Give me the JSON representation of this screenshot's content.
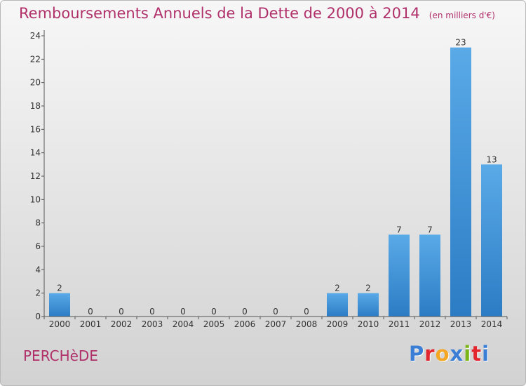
{
  "header": {
    "title": "Remboursements Annuels de la Dette de 2000 à 2014",
    "unit": "(en milliers d'€)"
  },
  "footer": {
    "commune": "PERCHèDE",
    "brand": "Proxiti",
    "brand_colors": [
      "#3a7fd5",
      "#e3262e",
      "#f5a623",
      "#3a7fd5",
      "#7cb518",
      "#e3262e",
      "#3a7fd5"
    ]
  },
  "chart_data": {
    "type": "bar",
    "title": "Remboursements Annuels de la Dette de 2000 à 2014",
    "subtitle": "(en milliers d'€)",
    "xlabel": "",
    "ylabel": "",
    "categories": [
      "2000",
      "2001",
      "2002",
      "2003",
      "2004",
      "2005",
      "2006",
      "2007",
      "2008",
      "2009",
      "2010",
      "2011",
      "2012",
      "2013",
      "2014"
    ],
    "values": [
      2,
      0,
      0,
      0,
      0,
      0,
      0,
      0,
      0,
      2,
      2,
      7,
      7,
      23,
      13
    ],
    "ylim": [
      0,
      24
    ],
    "yticks": [
      0,
      2,
      4,
      6,
      8,
      10,
      12,
      14,
      16,
      18,
      20,
      22,
      24
    ],
    "grid": false,
    "bar_color_top": "#5aaae8",
    "bar_color_bottom": "#2b7cc4"
  }
}
